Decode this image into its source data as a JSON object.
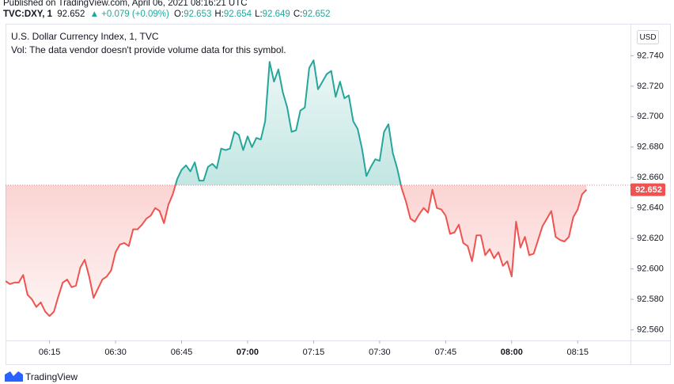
{
  "header": {
    "published": "Published on TradingView.com, April 06, 2021 08:16:21 UTC",
    "symbol": "TVC:DXY, 1",
    "price": "92.652",
    "change": "▲ +0.079 (+0.09%)",
    "ohlc": [
      {
        "label": "O:",
        "value": "92.653"
      },
      {
        "label": "H:",
        "value": "92.654"
      },
      {
        "label": "L:",
        "value": "92.649"
      },
      {
        "label": "C:",
        "value": "92.652"
      }
    ]
  },
  "footer": {
    "brand": "TradingView"
  },
  "chart_data": {
    "type": "baseline",
    "title": "U.S. Dollar Currency Index, 1, TVC",
    "volume_note": "Vol: The data vendor doesn't provide volume data for this symbol.",
    "currency": "USD",
    "up_color": "#26a69a",
    "down_color": "#ef5350",
    "baseline": 92.655,
    "x": [
      "06:05",
      "06:06",
      "06:07",
      "06:08",
      "06:09",
      "06:10",
      "06:11",
      "06:12",
      "06:13",
      "06:14",
      "06:15",
      "06:16",
      "06:17",
      "06:18",
      "06:19",
      "06:20",
      "06:21",
      "06:22",
      "06:23",
      "06:24",
      "06:25",
      "06:26",
      "06:27",
      "06:28",
      "06:29",
      "06:30",
      "06:31",
      "06:32",
      "06:33",
      "06:34",
      "06:35",
      "06:36",
      "06:37",
      "06:38",
      "06:39",
      "06:40",
      "06:41",
      "06:42",
      "06:43",
      "06:44",
      "06:45",
      "06:46",
      "06:47",
      "06:48",
      "06:49",
      "06:50",
      "06:51",
      "06:52",
      "06:53",
      "06:54",
      "06:55",
      "06:56",
      "06:57",
      "06:58",
      "06:59",
      "07:00",
      "07:01",
      "07:02",
      "07:03",
      "07:04",
      "07:05",
      "07:06",
      "07:07",
      "07:08",
      "07:09",
      "07:10",
      "07:11",
      "07:12",
      "07:13",
      "07:14",
      "07:15",
      "07:16",
      "07:17",
      "07:18",
      "07:19",
      "07:20",
      "07:21",
      "07:22",
      "07:23",
      "07:24",
      "07:25",
      "07:26",
      "07:27",
      "07:28",
      "07:29",
      "07:30",
      "07:31",
      "07:32",
      "07:33",
      "07:34",
      "07:35",
      "07:36",
      "07:37",
      "07:38",
      "07:39",
      "07:40",
      "07:41",
      "07:42",
      "07:43",
      "07:44",
      "07:45",
      "07:46",
      "07:47",
      "07:48",
      "07:49",
      "07:50",
      "07:51",
      "07:52",
      "07:53",
      "07:54",
      "07:55",
      "07:56",
      "07:57",
      "07:58",
      "07:59",
      "08:00",
      "08:01",
      "08:02",
      "08:03",
      "08:04",
      "08:05",
      "08:06",
      "08:07",
      "08:08",
      "08:09",
      "08:10",
      "08:11",
      "08:12",
      "08:13",
      "08:14",
      "08:15",
      "08:16",
      "08:17"
    ],
    "values": [
      92.592,
      92.59,
      92.591,
      92.591,
      92.596,
      92.583,
      92.58,
      92.575,
      92.578,
      92.572,
      92.569,
      92.572,
      92.582,
      92.591,
      92.593,
      92.588,
      92.589,
      92.601,
      92.606,
      92.595,
      92.581,
      92.587,
      92.593,
      92.595,
      92.599,
      92.611,
      92.616,
      92.617,
      92.615,
      92.626,
      92.626,
      92.629,
      92.633,
      92.635,
      92.64,
      92.638,
      92.63,
      92.642,
      92.649,
      92.659,
      92.665,
      92.668,
      92.664,
      92.67,
      92.658,
      92.658,
      92.667,
      92.669,
      92.666,
      92.679,
      92.678,
      92.679,
      92.69,
      92.688,
      92.678,
      92.687,
      92.68,
      92.686,
      92.685,
      92.697,
      92.736,
      92.723,
      92.731,
      92.716,
      92.706,
      92.69,
      92.691,
      92.704,
      92.706,
      92.732,
      92.737,
      92.718,
      92.723,
      92.728,
      92.73,
      92.713,
      92.723,
      92.712,
      92.714,
      92.697,
      92.692,
      92.679,
      92.661,
      92.667,
      92.672,
      92.671,
      92.69,
      92.695,
      92.676,
      92.666,
      92.653,
      92.644,
      92.633,
      92.631,
      92.636,
      92.64,
      92.637,
      92.652,
      92.64,
      92.639,
      92.635,
      92.623,
      92.624,
      92.629,
      92.617,
      92.615,
      92.605,
      92.622,
      92.622,
      92.609,
      92.613,
      92.607,
      92.611,
      92.602,
      92.605,
      92.595,
      92.631,
      92.614,
      92.621,
      92.609,
      92.61,
      92.619,
      92.628,
      92.633,
      92.638,
      92.621,
      92.619,
      92.618,
      92.621,
      92.634,
      92.639,
      92.649,
      92.652
    ],
    "xlim": [
      "06:05",
      "08:27"
    ],
    "xticks": [
      "06:15",
      "06:30",
      "06:45",
      "07:00",
      "07:15",
      "07:30",
      "07:45",
      "08:00",
      "08:15"
    ],
    "ylim": [
      92.553,
      92.761
    ],
    "yticks": [
      {
        "value": 92.56,
        "label": "92.560"
      },
      {
        "value": 92.58,
        "label": "92.580"
      },
      {
        "value": 92.6,
        "label": "92.600"
      },
      {
        "value": 92.62,
        "label": "92.620"
      },
      {
        "value": 92.64,
        "label": "92.640"
      },
      {
        "value": 92.66,
        "label": "92.660"
      },
      {
        "value": 92.68,
        "label": "92.680"
      },
      {
        "value": 92.7,
        "label": "92.700"
      },
      {
        "value": 92.72,
        "label": "92.720"
      },
      {
        "value": 92.74,
        "label": "92.740"
      }
    ]
  }
}
